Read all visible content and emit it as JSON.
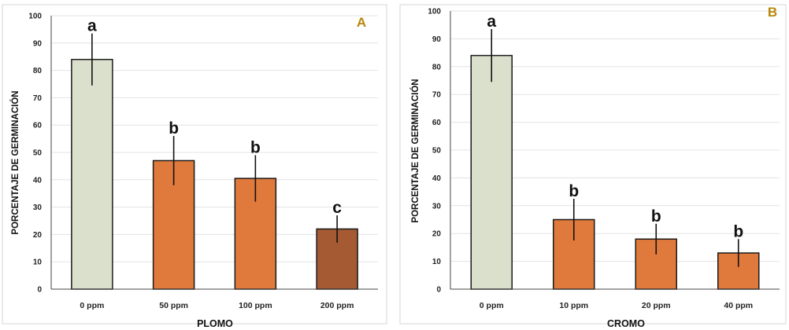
{
  "chart_data": [
    {
      "type": "bar",
      "panel_label": "A",
      "ylabel": "PORCENTAJE DE GERMINACIÓN",
      "xlabel": "PLOMO",
      "ylim": [
        0,
        100
      ],
      "yticks": [
        "0",
        "10",
        "20",
        "30",
        "40",
        "50",
        "60",
        "70",
        "80",
        "90",
        "100"
      ],
      "grid": true,
      "categories": [
        "0 ppm",
        "50 ppm",
        "100 ppm",
        "200 ppm"
      ],
      "values": [
        84,
        47,
        40.5,
        22
      ],
      "error": [
        9.5,
        9,
        8.5,
        5
      ],
      "significance_letters": [
        "a",
        "b",
        "b",
        "c"
      ],
      "bar_colors": [
        "#dbe0cc",
        "#e07a3c",
        "#e07a3c",
        "#a65a33"
      ]
    },
    {
      "type": "bar",
      "panel_label": "B",
      "ylabel": "PORCENTAJE DE GERMINACIÓN",
      "xlabel": "CROMO",
      "ylim": [
        0,
        100
      ],
      "yticks": [
        "0",
        "10",
        "20",
        "30",
        "40",
        "50",
        "60",
        "70",
        "80",
        "90",
        "100"
      ],
      "grid": true,
      "categories": [
        "0 ppm",
        "10 ppm",
        "20 ppm",
        "40 ppm"
      ],
      "values": [
        84,
        25,
        18,
        13
      ],
      "error": [
        9.5,
        7.5,
        5.5,
        5
      ],
      "significance_letters": [
        "a",
        "b",
        "b",
        "b"
      ],
      "bar_colors": [
        "#dbe0cc",
        "#e07a3c",
        "#e07a3c",
        "#e07a3c"
      ]
    }
  ],
  "panel_label_color": "#b8860b"
}
